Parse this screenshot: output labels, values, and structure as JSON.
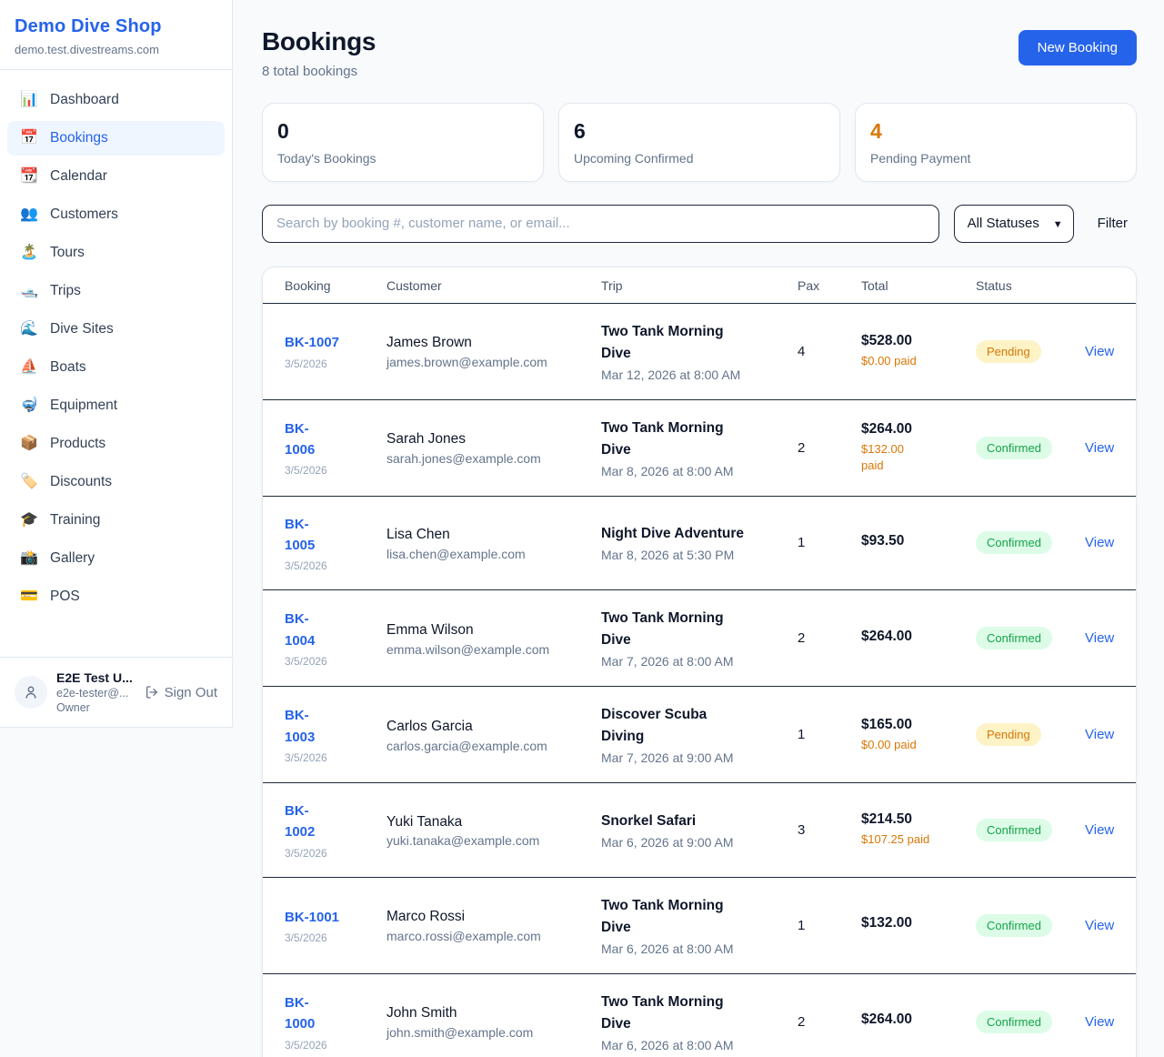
{
  "colors": {
    "accent": "#2563eb",
    "accent-bg": "#eff6ff",
    "orange": "#d97706",
    "green": "#16a34a",
    "green-bg": "#dcfce7",
    "amber-bg": "#fef3c7",
    "page-bg": "#f8fafc"
  },
  "sidebar": {
    "brand": {
      "name": "Demo Dive Shop",
      "domain": "demo.test.divestreams.com"
    },
    "nav": [
      {
        "icon": "bar-chart",
        "glyph": "📊",
        "label": "Dashboard",
        "active": false
      },
      {
        "icon": "calendar",
        "glyph": "📅",
        "label": "Bookings",
        "active": true
      },
      {
        "icon": "tear-off-calendar",
        "glyph": "📆",
        "label": "Calendar",
        "active": false
      },
      {
        "icon": "users",
        "glyph": "👥",
        "label": "Customers",
        "active": false
      },
      {
        "icon": "island",
        "glyph": "🏝️",
        "label": "Tours",
        "active": false
      },
      {
        "icon": "speedboat",
        "glyph": "🛥️",
        "label": "Trips",
        "active": false
      },
      {
        "icon": "wave",
        "glyph": "🌊",
        "label": "Dive Sites",
        "active": false
      },
      {
        "icon": "sailboat",
        "glyph": "⛵",
        "label": "Boats",
        "active": false
      },
      {
        "icon": "diving-mask",
        "glyph": "🤿",
        "label": "Equipment",
        "active": false
      },
      {
        "icon": "package",
        "glyph": "📦",
        "label": "Products",
        "active": false
      },
      {
        "icon": "label-tag",
        "glyph": "🏷️",
        "label": "Discounts",
        "active": false
      },
      {
        "icon": "graduation-cap",
        "glyph": "🎓",
        "label": "Training",
        "active": false
      },
      {
        "icon": "camera-flash",
        "glyph": "📸",
        "label": "Gallery",
        "active": false
      },
      {
        "icon": "credit-card",
        "glyph": "💳",
        "label": "POS",
        "active": false
      }
    ],
    "user": {
      "name": "E2E Test U...",
      "email": "e2e-tester@...",
      "role": "Owner",
      "signout_label": "Sign Out"
    }
  },
  "header": {
    "title": "Bookings",
    "subtitle": "8 total bookings",
    "new_booking_label": "New Booking"
  },
  "stats": [
    {
      "value": "0",
      "label": "Today's Bookings",
      "value_color": "#0f172a"
    },
    {
      "value": "6",
      "label": "Upcoming Confirmed",
      "value_color": "#0f172a"
    },
    {
      "value": "4",
      "label": "Pending Payment",
      "value_color": "#d97706"
    }
  ],
  "filters": {
    "search_placeholder": "Search by booking #, customer name, or email...",
    "status_selected": "All Statuses",
    "filter_label": "Filter"
  },
  "table": {
    "columns": [
      "Booking",
      "Customer",
      "Trip",
      "Pax",
      "Total",
      "Status"
    ],
    "rows": [
      {
        "booking_lines": [
          "BK-1007"
        ],
        "date": "3/5/2026",
        "customer": "James Brown",
        "email": "james.brown@example.com",
        "trip_lines": [
          "Two Tank Morning",
          "Dive"
        ],
        "trip_time": "Mar 12, 2026 at 8:00 AM",
        "pax": "4",
        "total": "$528.00",
        "paid_lines": [
          "$0.00 paid"
        ],
        "status": "Pending",
        "view_label": "View"
      },
      {
        "booking_lines": [
          "BK-",
          "1006"
        ],
        "date": "3/5/2026",
        "customer": "Sarah Jones",
        "email": "sarah.jones@example.com",
        "trip_lines": [
          "Two Tank Morning",
          "Dive"
        ],
        "trip_time": "Mar 8, 2026 at 8:00 AM",
        "pax": "2",
        "total": "$264.00",
        "paid_lines": [
          "$132.00",
          "paid"
        ],
        "status": "Confirmed",
        "view_label": "View"
      },
      {
        "booking_lines": [
          "BK-",
          "1005"
        ],
        "date": "3/5/2026",
        "customer": "Lisa Chen",
        "email": "lisa.chen@example.com",
        "trip_lines": [
          "Night Dive Adventure"
        ],
        "trip_time": "Mar 8, 2026 at 5:30 PM",
        "pax": "1",
        "total": "$93.50",
        "paid_lines": [],
        "status": "Confirmed",
        "view_label": "View"
      },
      {
        "booking_lines": [
          "BK-",
          "1004"
        ],
        "date": "3/5/2026",
        "customer": "Emma Wilson",
        "email": "emma.wilson@example.com",
        "trip_lines": [
          "Two Tank Morning",
          "Dive"
        ],
        "trip_time": "Mar 7, 2026 at 8:00 AM",
        "pax": "2",
        "total": "$264.00",
        "paid_lines": [],
        "status": "Confirmed",
        "view_label": "View"
      },
      {
        "booking_lines": [
          "BK-",
          "1003"
        ],
        "date": "3/5/2026",
        "customer": "Carlos Garcia",
        "email": "carlos.garcia@example.com",
        "trip_lines": [
          "Discover Scuba",
          "Diving"
        ],
        "trip_time": "Mar 7, 2026 at 9:00 AM",
        "pax": "1",
        "total": "$165.00",
        "paid_lines": [
          "$0.00 paid"
        ],
        "status": "Pending",
        "view_label": "View"
      },
      {
        "booking_lines": [
          "BK-",
          "1002"
        ],
        "date": "3/5/2026",
        "customer": "Yuki Tanaka",
        "email": "yuki.tanaka@example.com",
        "trip_lines": [
          "Snorkel Safari"
        ],
        "trip_time": "Mar 6, 2026 at 9:00 AM",
        "pax": "3",
        "total": "$214.50",
        "paid_lines": [
          "$107.25 paid"
        ],
        "status": "Confirmed",
        "view_label": "View"
      },
      {
        "booking_lines": [
          "BK-1001"
        ],
        "date": "3/5/2026",
        "customer": "Marco Rossi",
        "email": "marco.rossi@example.com",
        "trip_lines": [
          "Two Tank Morning",
          "Dive"
        ],
        "trip_time": "Mar 6, 2026 at 8:00 AM",
        "pax": "1",
        "total": "$132.00",
        "paid_lines": [],
        "status": "Confirmed",
        "view_label": "View"
      },
      {
        "booking_lines": [
          "BK-",
          "1000"
        ],
        "date": "3/5/2026",
        "customer": "John Smith",
        "email": "john.smith@example.com",
        "trip_lines": [
          "Two Tank Morning",
          "Dive"
        ],
        "trip_time": "Mar 6, 2026 at 8:00 AM",
        "pax": "2",
        "total": "$264.00",
        "paid_lines": [],
        "status": "Confirmed",
        "view_label": "View"
      }
    ]
  }
}
